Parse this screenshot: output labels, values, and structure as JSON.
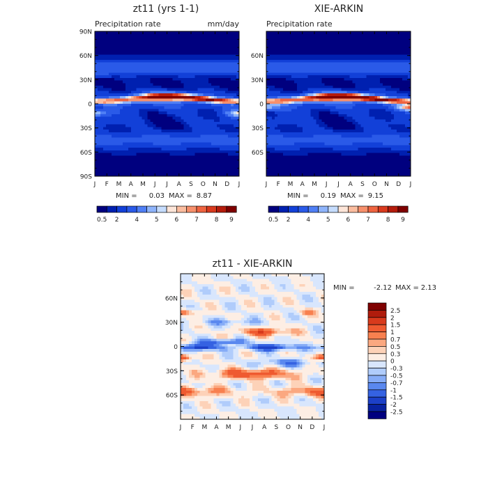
{
  "chart_data": [
    {
      "type": "heatmap",
      "title": "zt11 (yrs 1-1)",
      "subtitle_left": "Precipitation rate",
      "subtitle_right": "mm/day",
      "stats": {
        "min_label": "MIN =",
        "min": "0.03",
        "max_label": "MAX =",
        "max": "8.87"
      },
      "x_ticks": [
        "J",
        "F",
        "M",
        "A",
        "M",
        "J",
        "J",
        "A",
        "S",
        "O",
        "N",
        "D",
        "J"
      ],
      "y_ticks": [
        {
          "v": 90,
          "label": "90N"
        },
        {
          "v": 60,
          "label": "60N"
        },
        {
          "v": 30,
          "label": "30N"
        },
        {
          "v": 0,
          "label": "0"
        },
        {
          "v": -30,
          "label": "30S"
        },
        {
          "v": -60,
          "label": "60S"
        },
        {
          "v": -90,
          "label": "90S"
        }
      ],
      "ylim": [
        -90,
        90
      ],
      "xlim": [
        0,
        12
      ],
      "colorbar_labels": [
        "0.5",
        "2",
        "4",
        "5",
        "6",
        "7",
        "8",
        "9"
      ]
    },
    {
      "type": "heatmap",
      "title": "XIE-ARKIN",
      "subtitle_left": "Precipitation rate",
      "subtitle_right": "",
      "stats": {
        "min_label": "MIN =",
        "min": "0.19",
        "max_label": "MAX =",
        "max": "9.15"
      },
      "x_ticks": [
        "J",
        "F",
        "M",
        "A",
        "M",
        "J",
        "J",
        "A",
        "S",
        "O",
        "N",
        "D",
        "J"
      ],
      "y_ticks": [
        {
          "v": 60,
          "label": "60N"
        },
        {
          "v": 30,
          "label": "30N"
        },
        {
          "v": 0,
          "label": "0"
        },
        {
          "v": -30,
          "label": "30S"
        },
        {
          "v": -60,
          "label": "60S"
        }
      ],
      "ylim": [
        -90,
        90
      ],
      "xlim": [
        0,
        12
      ],
      "colorbar_labels": [
        "0.5",
        "2",
        "4",
        "5",
        "6",
        "7",
        "8",
        "9"
      ]
    },
    {
      "type": "heatmap",
      "title": "zt11 - XIE-ARKIN",
      "subtitle_left": "",
      "subtitle_right": "",
      "stats": {
        "min_label": "MIN =",
        "min": "-2.12",
        "max_label": "MAX =",
        "max": "2.13"
      },
      "x_ticks": [
        "J",
        "F",
        "M",
        "A",
        "M",
        "J",
        "J",
        "A",
        "S",
        "O",
        "N",
        "D",
        "J"
      ],
      "y_ticks": [
        {
          "v": 60,
          "label": "60N"
        },
        {
          "v": 30,
          "label": "30N"
        },
        {
          "v": 0,
          "label": "0"
        },
        {
          "v": -30,
          "label": "30S"
        },
        {
          "v": -60,
          "label": "60S"
        }
      ],
      "ylim": [
        -90,
        90
      ],
      "xlim": [
        0,
        12
      ],
      "colorbar_labels": [
        "2.5",
        "2",
        "1.5",
        "1",
        "0.7",
        "0.5",
        "0.3",
        "0",
        "-0.3",
        "-0.5",
        "-0.7",
        "-1",
        "-1.5",
        "-2",
        "-2.5"
      ]
    }
  ],
  "colors": {
    "precip_scale": [
      "#00007f",
      "#0020b0",
      "#1240d8",
      "#2a5ae8",
      "#4f7ff5",
      "#8eb4fb",
      "#c5dcfd",
      "#fde5d8",
      "#fbbd9f",
      "#f7906c",
      "#ef6440",
      "#d93a1e",
      "#b51c0c",
      "#7f0000"
    ],
    "diff_scale": [
      "#7f0000",
      "#b01c0c",
      "#d83a1c",
      "#ef5a30",
      "#f8804f",
      "#fba880",
      "#fdd2b8",
      "#fdeee4",
      "#d8e6fd",
      "#b0ccfb",
      "#86acf7",
      "#5a88ef",
      "#3562e2",
      "#1c40c8",
      "#0822a0",
      "#00007f"
    ]
  }
}
